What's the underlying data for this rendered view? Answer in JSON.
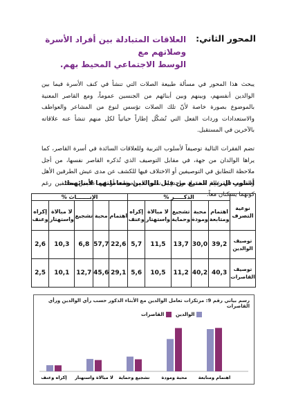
{
  "section": {
    "axis_label": "المحور الثاني:",
    "title_line1": "العلاقات المتبادلة بين أفراد الأسرة وصلاتهم مع",
    "title_line2": "الوسط الاجتماعي المحيط بهم."
  },
  "paragraph1": "يبحث هذا المحور في مسألة طبيعة الصلات التي تنشأ في كنف الأسرة فيما بين الوالدين أنفسهم، وبينهم وبين أبنائهم من الجنسين عموماً، ومع القاصر المعنية بالموضوع بصورة خاصة لأنّ تلك الصلات تؤسس لنوع من المشاعر والعواطف والاستعدادات وردات الفعل التي تُشكّل إطاراً حياتياً لكل منهم تنشأ عنه علاقاته بالآخرين في المستقبل.",
  "paragraph2": "تضم الفقرات التالية توصيفاً لأسلوب التربية وللعلاقات السائدة في أسرة القاصر، كما يراها الوالدان من جهة، في مقابل التوصيف الذي تُذكره القاصر نفسها، من أجل ملاحظة التطابق في التوصيفين أو الاختلاف فيها للكشف عن مدى عيش الطرفين الأهل والقاصر في عالم مشترك واحد له نفس المواصفات أو في عالمين مختلفين رغم كونهما يسكنان معاً.",
  "subheading": "أسلوب التربية المتبع من قِبَل الوالدين ومعاملتهما لأبنائهما:",
  "table": {
    "corner": "نوعية التصرف",
    "male_header": "الذكـــــر %",
    "female_header": "الإنـــــــاث %",
    "columns": [
      "اهتمام ومتابعة",
      "محبة ومودة",
      "تشجيع وحماية",
      "لا مبالاة واستهتار",
      "إكراه وعنف"
    ],
    "female_columns": [
      "اهتمام",
      "محبة",
      "تشجيع",
      "لا مبالاة واستهتار",
      "إكراه وعنف"
    ],
    "rows": [
      {
        "label": "توصيف الوالدين",
        "male": [
          "39,2",
          "30,0",
          "13,7",
          "11,5",
          "5,7"
        ],
        "female": [
          "22,6",
          "57,7",
          "6,8",
          "10,3",
          "2,6"
        ]
      },
      {
        "label": "توصيف القاصرات",
        "male": [
          "40,3",
          "40,2",
          "11,2",
          "10,5",
          "5,6"
        ],
        "female": [
          "29,1",
          "45,6",
          "12,7",
          "10,1",
          "2,5"
        ]
      }
    ]
  },
  "chart_data": {
    "type": "bar",
    "title": "رسم بياني رقم 9: مرتكزات تعامل الوالدين مع الأبناء الذكور حسب رأي الوالدين ورأي القاصرات",
    "categories": [
      "اهتمام ومتابعة",
      "محبة ومودة",
      "تشجيع وحماية",
      "لا مبالاة واستهتار",
      "إكراه وعنف"
    ],
    "series": [
      {
        "name": "الوالدين",
        "color": "#8e8ec0",
        "values": [
          39.2,
          30.0,
          13.7,
          11.5,
          5.7
        ]
      },
      {
        "name": "القاصرات",
        "color": "#8b2e6f",
        "values": [
          40.3,
          40.2,
          11.2,
          10.5,
          5.6
        ]
      }
    ],
    "legend_position": "top-center",
    "ylim": [
      0,
      45
    ],
    "grid": false
  }
}
